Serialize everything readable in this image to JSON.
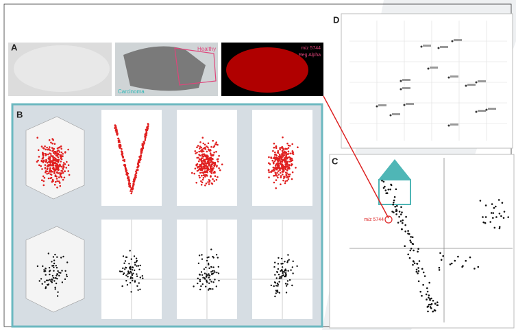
{
  "panels": {
    "a": {
      "label": "A",
      "healthy": "Healthy",
      "carcinoma": "Carcinoma",
      "ion": "m/z 5744",
      "ion_name": "Reg Alpha"
    },
    "b": {
      "label": "B"
    },
    "c": {
      "label": "C",
      "marker": "m/z 5744"
    },
    "d": {
      "label": "D"
    }
  }
}
